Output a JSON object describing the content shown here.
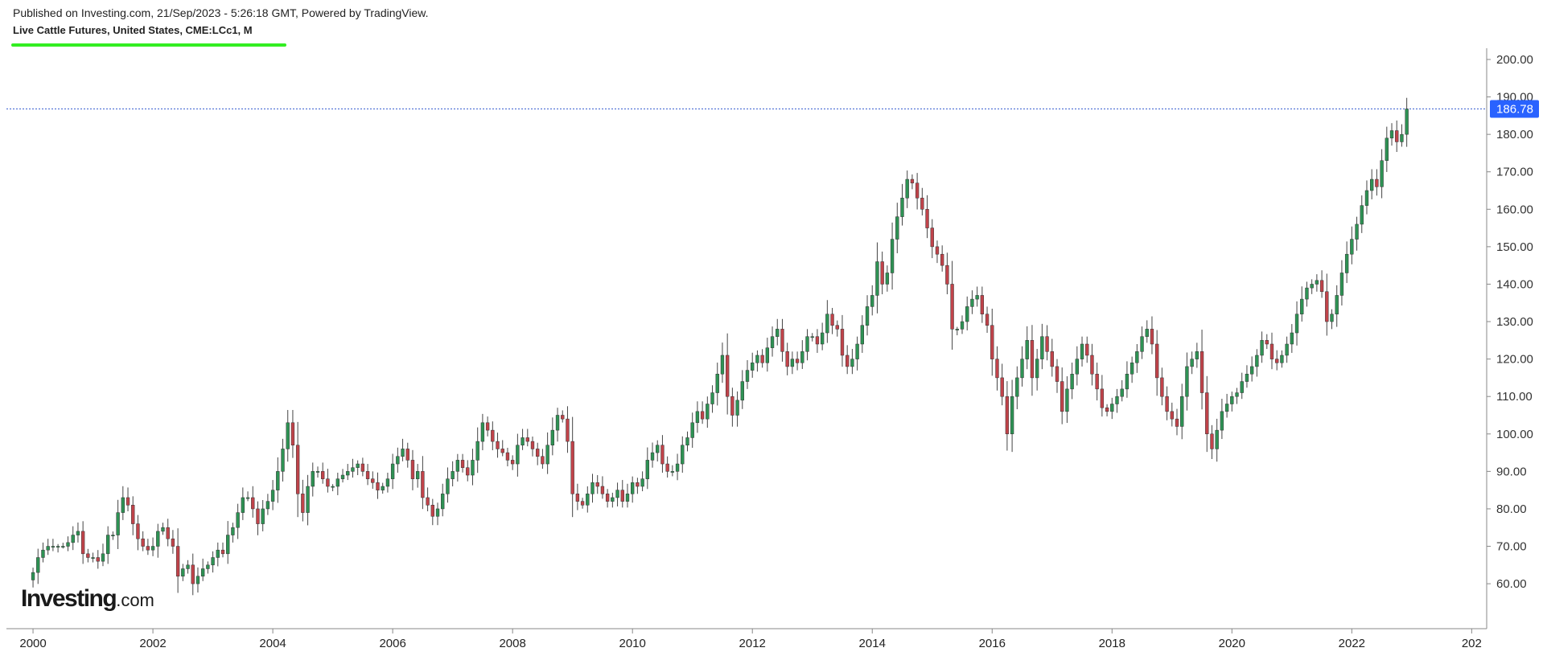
{
  "header": {
    "published": "Published on Investing.com, 21/Sep/2023 - 5:26:18 GMT, Powered by TradingView.",
    "symbol": "Live Cattle Futures, United States, CME:LCc1, M"
  },
  "logo": {
    "main": "Investing",
    "suffix": ".com"
  },
  "colors": {
    "up": "#2e9254",
    "down": "#c0434a",
    "wick": "#444444",
    "price_label": "#2962ff",
    "price_line": "#3a5fd0",
    "accent_line": "#33ee22",
    "axis": "#888888"
  },
  "chart_data": {
    "type": "candlestick",
    "title": "Live Cattle Futures, United States, CME:LCc1, M",
    "interval": "monthly",
    "x_start": "2000-01",
    "xlim": [
      "1999-08",
      "2024-04"
    ],
    "ylim": [
      48,
      203
    ],
    "y_ticks": [
      "60.00",
      "70.00",
      "80.00",
      "90.00",
      "100.00",
      "110.00",
      "120.00",
      "130.00",
      "140.00",
      "150.00",
      "160.00",
      "170.00",
      "180.00",
      "190.00",
      "200.00"
    ],
    "x_ticks": [
      "2000",
      "2002",
      "2004",
      "2006",
      "2008",
      "2010",
      "2012",
      "2014",
      "2016",
      "2018",
      "2020",
      "2022",
      "202"
    ],
    "last_price": "186.78",
    "last_price_value": 186.78,
    "grid": false,
    "close": [
      63,
      67,
      69,
      70,
      70,
      70,
      70,
      71,
      73,
      74,
      68,
      67,
      67,
      66,
      68,
      73,
      73,
      79,
      83,
      81,
      76,
      72,
      70,
      69,
      70,
      74,
      75,
      72,
      70,
      62,
      64,
      65,
      60,
      62,
      64,
      65,
      67,
      69,
      68,
      73,
      75,
      79,
      83,
      83,
      80,
      76,
      80,
      82,
      85,
      90,
      96,
      103,
      97,
      84,
      79,
      86,
      90,
      90,
      88,
      86,
      86,
      88,
      89,
      90,
      91,
      92,
      90,
      88,
      87,
      85,
      86,
      88,
      92,
      94,
      96,
      93,
      88,
      90,
      83,
      81,
      78,
      80,
      84,
      88,
      90,
      93,
      91,
      89,
      93,
      98,
      103,
      101,
      98,
      96,
      95,
      93,
      92,
      97,
      99,
      98,
      96,
      94,
      92,
      97,
      101,
      105,
      104,
      98,
      84,
      82,
      81,
      84,
      87,
      86,
      84,
      82,
      83,
      85,
      82,
      84,
      87,
      86,
      88,
      93,
      95,
      97,
      92,
      90,
      90,
      92,
      97,
      99,
      103,
      106,
      104,
      108,
      111,
      116,
      121,
      110,
      105,
      109,
      114,
      117,
      119,
      121,
      119,
      123,
      126,
      128,
      122,
      118,
      120,
      119,
      122,
      126,
      126,
      124,
      127,
      132,
      129,
      128,
      121,
      118,
      120,
      124,
      129,
      134,
      137,
      146,
      140,
      143,
      152,
      158,
      163,
      168,
      167,
      163,
      160,
      155,
      150,
      148,
      145,
      140,
      128,
      128,
      130,
      134,
      136,
      137,
      132,
      129,
      120,
      115,
      110,
      100,
      110,
      115,
      120,
      125,
      115,
      120,
      126,
      122,
      118,
      114,
      106,
      112,
      116,
      120,
      124,
      121,
      116,
      112,
      107,
      106,
      108,
      110,
      112,
      116,
      119,
      122,
      126,
      128,
      124,
      115,
      110,
      106,
      104,
      102,
      110,
      118,
      120,
      122,
      111,
      100,
      96,
      101,
      106,
      108,
      110,
      111,
      114,
      116,
      118,
      121,
      125,
      124,
      120,
      119,
      121,
      124,
      127,
      132,
      136,
      139,
      140,
      141,
      138,
      130,
      132,
      137,
      143,
      148,
      152,
      156,
      161,
      165,
      168,
      166,
      173,
      179,
      181,
      178,
      180,
      186.78
    ],
    "open": [
      61,
      63,
      67,
      69,
      70,
      70,
      70,
      70,
      71,
      73,
      74,
      68,
      67,
      67,
      66,
      68,
      73,
      73,
      79,
      83,
      81,
      76,
      72,
      70,
      69,
      70,
      74,
      75,
      72,
      70,
      62,
      64,
      65,
      60,
      62,
      64,
      65,
      67,
      69,
      68,
      73,
      75,
      79,
      83,
      83,
      80,
      76,
      80,
      82,
      85,
      90,
      96,
      103,
      97,
      84,
      79,
      86,
      90,
      90,
      88,
      86,
      86,
      88,
      89,
      90,
      91,
      92,
      90,
      88,
      87,
      85,
      86,
      88,
      92,
      94,
      96,
      93,
      88,
      90,
      83,
      81,
      78,
      80,
      84,
      88,
      90,
      93,
      91,
      89,
      93,
      98,
      103,
      101,
      98,
      96,
      95,
      93,
      92,
      97,
      99,
      98,
      96,
      94,
      92,
      97,
      101,
      105,
      104,
      98,
      84,
      82,
      81,
      84,
      87,
      86,
      84,
      82,
      83,
      85,
      82,
      84,
      87,
      86,
      88,
      93,
      95,
      97,
      92,
      90,
      90,
      92,
      97,
      99,
      103,
      106,
      104,
      108,
      111,
      116,
      121,
      110,
      105,
      109,
      114,
      117,
      119,
      121,
      119,
      123,
      126,
      128,
      122,
      118,
      120,
      119,
      122,
      126,
      126,
      124,
      127,
      132,
      129,
      128,
      121,
      118,
      120,
      124,
      129,
      134,
      137,
      146,
      140,
      143,
      152,
      158,
      163,
      168,
      167,
      163,
      160,
      155,
      150,
      148,
      145,
      140,
      128,
      128,
      130,
      134,
      136,
      137,
      132,
      129,
      120,
      115,
      110,
      100,
      110,
      115,
      120,
      125,
      115,
      120,
      126,
      122,
      118,
      114,
      106,
      112,
      116,
      120,
      124,
      121,
      116,
      112,
      107,
      106,
      108,
      110,
      112,
      116,
      119,
      122,
      126,
      128,
      124,
      115,
      110,
      106,
      104,
      102,
      110,
      118,
      120,
      122,
      111,
      100,
      96,
      101,
      106,
      108,
      110,
      111,
      114,
      116,
      118,
      121,
      125,
      124,
      120,
      119,
      121,
      124,
      127,
      132,
      136,
      139,
      140,
      141,
      138,
      130,
      132,
      137,
      143,
      148,
      152,
      156,
      161,
      165,
      168,
      166,
      173,
      179,
      181,
      178,
      180
    ]
  }
}
